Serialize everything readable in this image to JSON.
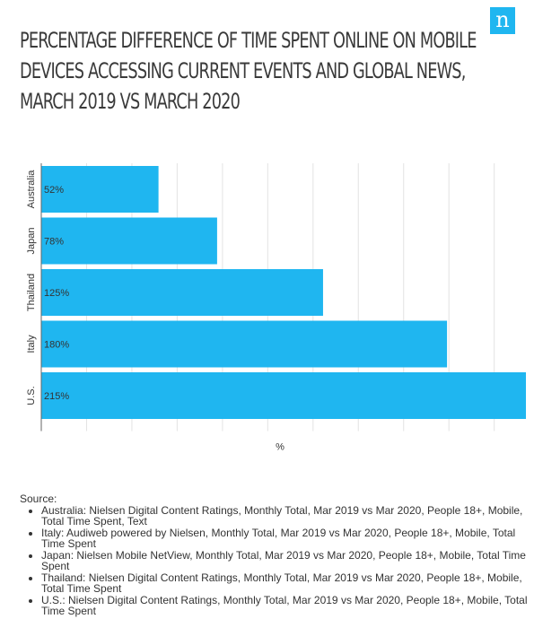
{
  "logo": {
    "glyph": "n",
    "color": "#1fb6f0"
  },
  "title": "PERCENTAGE DIFFERENCE OF TIME SPENT ONLINE ON MOBILE DEVICES ACCESSING CURRENT EVENTS AND GLOBAL NEWS, MARCH 2019 VS MARCH 2020",
  "chart_data": {
    "type": "bar",
    "orientation": "horizontal",
    "categories": [
      "Australia",
      "Japan",
      "Thailand",
      "Italy",
      "U.S."
    ],
    "values": [
      52,
      78,
      125,
      180,
      215
    ],
    "data_labels": [
      "52%",
      "78%",
      "125%",
      "180%",
      "215%"
    ],
    "xlabel": "%",
    "xlim": [
      0,
      215
    ],
    "grid": true,
    "bar_color": "#1fb6f0"
  },
  "source": {
    "heading": "Source:",
    "items": [
      "Australia: Nielsen Digital Content Ratings, Monthly Total, Mar 2019 vs Mar 2020, People 18+, Mobile, Total Time Spent, Text",
      "Italy: Audiweb powered by Nielsen, Monthly Total, Mar 2019 vs Mar 2020, People 18+, Mobile, Total Time Spent",
      "Japan: Nielsen Mobile NetView, Monthly Total, Mar 2019 vs Mar 2020, People 18+, Mobile, Total Time Spent",
      "Thailand: Nielsen Digital Content Ratings, Monthly Total, Mar 2019 vs Mar 2020, People 18+, Mobile, Total Time Spent",
      "U.S.:  Nielsen Digital Content Ratings, Monthly Total, Mar 2019 vs Mar 2020, People 18+, Mobile, Total Time Spent"
    ]
  }
}
